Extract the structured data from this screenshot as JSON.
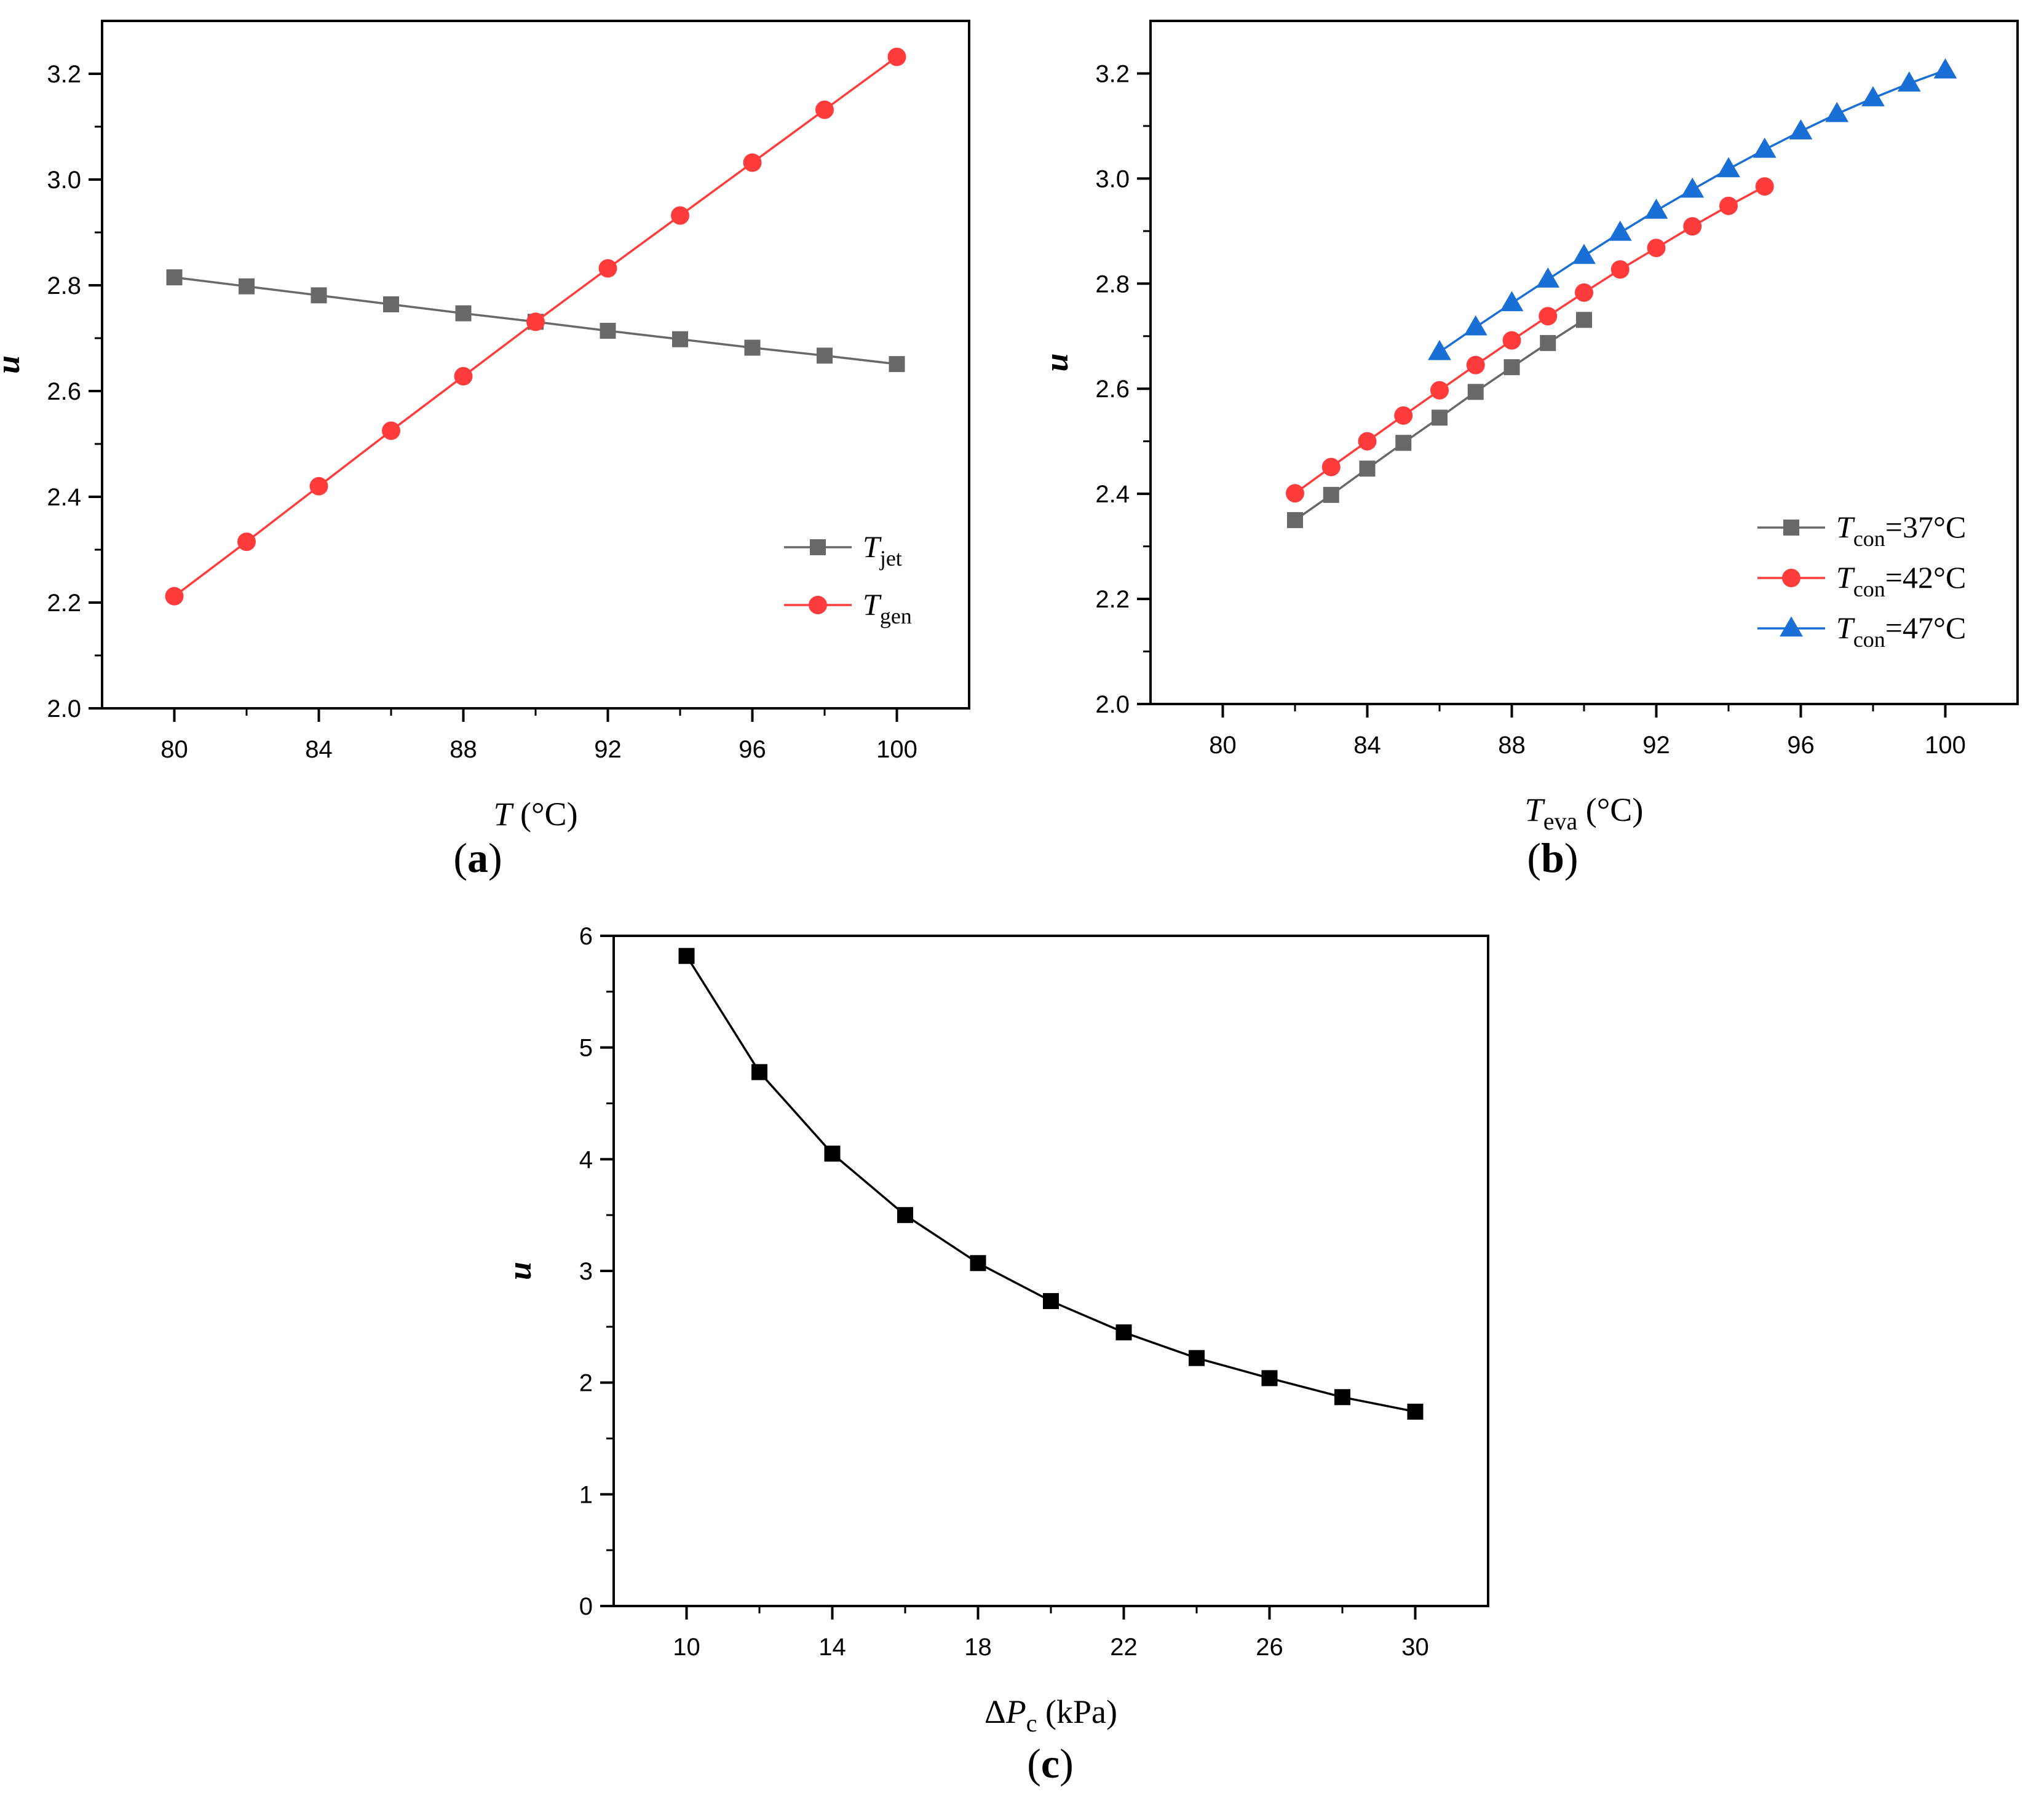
{
  "chart_data": [
    {
      "id": "a",
      "type": "line",
      "panel_label": "(a)",
      "xlabel": {
        "italic": "T",
        "sub": "",
        "rest": " (°C)"
      },
      "ylabel": "u",
      "xlim": [
        78,
        102
      ],
      "ylim": [
        2.0,
        3.3
      ],
      "xticks": [
        80,
        84,
        88,
        92,
        96,
        100
      ],
      "yticks": [
        2.0,
        2.2,
        2.4,
        2.6,
        2.8,
        3.0,
        3.2
      ],
      "xtick_labels": [
        "80",
        "84",
        "88",
        "92",
        "96",
        "100"
      ],
      "ytick_labels": [
        "2.0",
        "2.2",
        "2.4",
        "2.6",
        "2.8",
        "3.0",
        "3.2"
      ],
      "legend_position": "lower-right",
      "series": [
        {
          "name": "T_jet",
          "legend_italic": "T",
          "legend_sub": "jet",
          "legend_rest": "",
          "color": "#686868",
          "marker": "square",
          "x": [
            80,
            82,
            84,
            86,
            88,
            90,
            92,
            94,
            96,
            98,
            100
          ],
          "y": [
            2.815,
            2.798,
            2.781,
            2.764,
            2.747,
            2.731,
            2.714,
            2.698,
            2.682,
            2.667,
            2.651
          ]
        },
        {
          "name": "T_gen",
          "legend_italic": "T",
          "legend_sub": "gen",
          "legend_rest": "",
          "color": "#ff3b3b",
          "marker": "circle",
          "x": [
            80,
            82,
            84,
            86,
            88,
            90,
            92,
            94,
            96,
            98,
            100
          ],
          "y": [
            2.212,
            2.315,
            2.42,
            2.525,
            2.628,
            2.731,
            2.832,
            2.932,
            3.032,
            3.132,
            3.232
          ]
        }
      ]
    },
    {
      "id": "b",
      "type": "line",
      "panel_label": "(b)",
      "xlabel": {
        "italic": "T",
        "sub": "eva",
        "rest": " (°C)"
      },
      "ylabel": "u",
      "xlim": [
        78,
        102
      ],
      "ylim": [
        2.0,
        3.3
      ],
      "xticks": [
        80,
        84,
        88,
        92,
        96,
        100
      ],
      "yticks": [
        2.0,
        2.2,
        2.4,
        2.6,
        2.8,
        3.0,
        3.2
      ],
      "xtick_labels": [
        "80",
        "84",
        "88",
        "92",
        "96",
        "100"
      ],
      "ytick_labels": [
        "2.0",
        "2.2",
        "2.4",
        "2.6",
        "2.8",
        "3.0",
        "3.2"
      ],
      "legend_position": "lower-right",
      "series": [
        {
          "name": "Tcon=37°C",
          "legend_italic": "T",
          "legend_sub": "con",
          "legend_rest": "=37°C",
          "color": "#686868",
          "marker": "square",
          "x": [
            82,
            83,
            84,
            85,
            86,
            87,
            88,
            89,
            90
          ],
          "y": [
            2.35,
            2.398,
            2.448,
            2.497,
            2.545,
            2.594,
            2.641,
            2.687,
            2.731
          ]
        },
        {
          "name": "Tcon=42°C",
          "legend_italic": "T",
          "legend_sub": "con",
          "legend_rest": "=42°C",
          "color": "#ff3b3b",
          "marker": "circle",
          "x": [
            82,
            83,
            84,
            85,
            86,
            87,
            88,
            89,
            90,
            91,
            92,
            93,
            94,
            95
          ],
          "y": [
            2.401,
            2.451,
            2.5,
            2.549,
            2.597,
            2.645,
            2.692,
            2.738,
            2.783,
            2.827,
            2.868,
            2.909,
            2.948,
            2.985
          ]
        },
        {
          "name": "Tcon=47°C",
          "legend_italic": "T",
          "legend_sub": "con",
          "legend_rest": "=47°C",
          "color": "#1a6fd6",
          "marker": "triangle",
          "x": [
            86,
            87,
            88,
            89,
            90,
            91,
            92,
            93,
            94,
            95,
            96,
            97,
            98,
            99,
            100
          ],
          "y": [
            2.67,
            2.717,
            2.763,
            2.808,
            2.853,
            2.897,
            2.939,
            2.979,
            3.018,
            3.055,
            3.09,
            3.123,
            3.153,
            3.181,
            3.206
          ]
        }
      ]
    },
    {
      "id": "c",
      "type": "line",
      "panel_label": "(c)",
      "xlabel": {
        "italic": "P",
        "prefix": "Δ",
        "sub": "c",
        "rest": " (kPa)"
      },
      "ylabel": "u",
      "xlim": [
        8,
        32
      ],
      "ylim": [
        0,
        6
      ],
      "xticks": [
        10,
        14,
        18,
        22,
        26,
        30
      ],
      "yticks": [
        0,
        1,
        2,
        3,
        4,
        5,
        6
      ],
      "xtick_labels": [
        "10",
        "14",
        "18",
        "22",
        "26",
        "30"
      ],
      "ytick_labels": [
        "0",
        "1",
        "2",
        "3",
        "4",
        "5",
        "6"
      ],
      "legend_position": "none",
      "series": [
        {
          "name": "u",
          "color": "#000000",
          "marker": "square",
          "x": [
            10,
            12,
            14,
            16,
            18,
            20,
            22,
            24,
            26,
            28,
            30
          ],
          "y": [
            5.82,
            4.78,
            4.05,
            3.5,
            3.07,
            2.73,
            2.45,
            2.22,
            2.04,
            1.87,
            1.74
          ]
        }
      ]
    }
  ]
}
